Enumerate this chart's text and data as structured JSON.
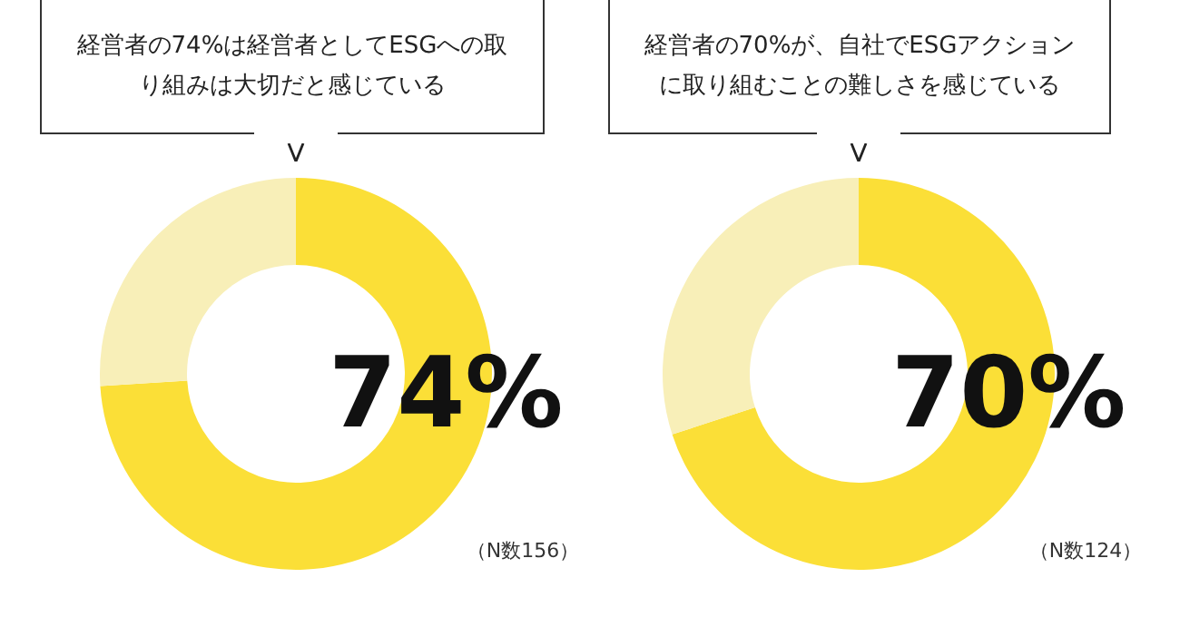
{
  "chart_data": [
    {
      "type": "donut",
      "title": "経営者の74%は経営者としてESGへの取り組みは大切だと感じている",
      "categories": [
        null,
        null
      ],
      "values": [
        74,
        26
      ],
      "colors": [
        "#fbdf37",
        "#f8efb8"
      ],
      "value_labels": [
        "74%",
        null
      ],
      "annotations": [
        "（N数156）"
      ]
    },
    {
      "type": "donut",
      "title": "経営者の70%が、自社でESGアクションに取り組むことの難しさを感じている",
      "categories": [
        null,
        null
      ],
      "values": [
        70,
        30
      ],
      "colors": [
        "#fbdf37",
        "#f8efb8"
      ],
      "value_labels": [
        "70%",
        null
      ],
      "annotations": [
        "（N数124）"
      ]
    }
  ]
}
